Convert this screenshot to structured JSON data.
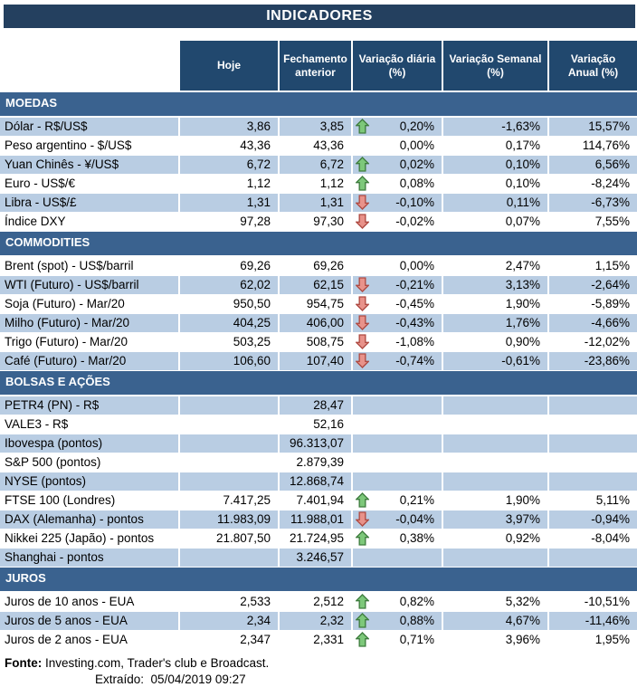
{
  "title": "INDICADORES",
  "columns": [
    {
      "key": "hoje",
      "label": "Hoje",
      "lines": [
        "Hoje"
      ]
    },
    {
      "key": "fechamento_anterior",
      "label": "Fechamento anterior",
      "lines": [
        "Fechamento",
        "anterior"
      ]
    },
    {
      "key": "variacao_diaria",
      "label": "Variação diária (%)",
      "lines": [
        "Variação diária",
        "(%)"
      ]
    },
    {
      "key": "variacao_semanal",
      "label": "Variação Semanal (%)",
      "lines": [
        "Variação Semanal",
        "(%)"
      ]
    },
    {
      "key": "variacao_anual",
      "label": "Variação Anual (%)",
      "lines": [
        "Variação",
        "Anual (%)"
      ]
    }
  ],
  "sections": [
    {
      "name": "MOEDAS",
      "rows": [
        {
          "label": "Dólar - R$/US$",
          "hoje": "3,86",
          "fechamento": "3,85",
          "arrow": "up",
          "diaria": "0,20%",
          "semanal": "-1,63%",
          "anual": "15,57%",
          "shaded": true
        },
        {
          "label": "Peso argentino - $/US$",
          "hoje": "43,36",
          "fechamento": "43,36",
          "arrow": "none",
          "diaria": "0,00%",
          "semanal": "0,17%",
          "anual": "114,76%",
          "shaded": false
        },
        {
          "label": "Yuan Chinês - ¥/US$",
          "hoje": "6,72",
          "fechamento": "6,72",
          "arrow": "up",
          "diaria": "0,02%",
          "semanal": "0,10%",
          "anual": "6,56%",
          "shaded": true
        },
        {
          "label": "Euro - US$/€",
          "hoje": "1,12",
          "fechamento": "1,12",
          "arrow": "up",
          "diaria": "0,08%",
          "semanal": "0,10%",
          "anual": "-8,24%",
          "shaded": false
        },
        {
          "label": "Libra - US$/£",
          "hoje": "1,31",
          "fechamento": "1,31",
          "arrow": "down",
          "diaria": "-0,10%",
          "semanal": "0,11%",
          "anual": "-6,73%",
          "shaded": true
        },
        {
          "label": "Índice DXY",
          "hoje": "97,28",
          "fechamento": "97,30",
          "arrow": "down",
          "diaria": "-0,02%",
          "semanal": "0,07%",
          "anual": "7,55%",
          "shaded": false
        }
      ]
    },
    {
      "name": "COMMODITIES",
      "rows": [
        {
          "label": "Brent (spot) - US$/barril",
          "hoje": "69,26",
          "fechamento": "69,26",
          "arrow": "none",
          "diaria": "0,00%",
          "semanal": "2,47%",
          "anual": "1,15%",
          "shaded": false
        },
        {
          "label": "WTI (Futuro) - US$/barril",
          "hoje": "62,02",
          "fechamento": "62,15",
          "arrow": "down",
          "diaria": "-0,21%",
          "semanal": "3,13%",
          "anual": "-2,64%",
          "shaded": true
        },
        {
          "label": "Soja (Futuro) - Mar/20",
          "hoje": "950,50",
          "fechamento": "954,75",
          "arrow": "down",
          "diaria": "-0,45%",
          "semanal": "1,90%",
          "anual": "-5,89%",
          "shaded": false
        },
        {
          "label": "Milho (Futuro) - Mar/20",
          "hoje": "404,25",
          "fechamento": "406,00",
          "arrow": "down",
          "diaria": "-0,43%",
          "semanal": "1,76%",
          "anual": "-4,66%",
          "shaded": true
        },
        {
          "label": "Trigo (Futuro) - Mar/20",
          "hoje": "503,25",
          "fechamento": "508,75",
          "arrow": "down",
          "diaria": "-1,08%",
          "semanal": "0,90%",
          "anual": "-12,02%",
          "shaded": false
        },
        {
          "label": "Café (Futuro) - Mar/20",
          "hoje": "106,60",
          "fechamento": "107,40",
          "arrow": "down",
          "diaria": "-0,74%",
          "semanal": "-0,61%",
          "anual": "-23,86%",
          "shaded": true
        }
      ]
    },
    {
      "name": "BOLSAS E AÇÕES",
      "rows": [
        {
          "label": "PETR4 (PN) - R$",
          "hoje": "",
          "fechamento": "28,47",
          "arrow": "none",
          "diaria": "",
          "semanal": "",
          "anual": "",
          "shaded": true
        },
        {
          "label": "VALE3 - R$",
          "hoje": "",
          "fechamento": "52,16",
          "arrow": "none",
          "diaria": "",
          "semanal": "",
          "anual": "",
          "shaded": false
        },
        {
          "label": "Ibovespa (pontos)",
          "hoje": "",
          "fechamento": "96.313,07",
          "arrow": "none",
          "diaria": "",
          "semanal": "",
          "anual": "",
          "shaded": true
        },
        {
          "label": "S&P 500 (pontos)",
          "hoje": "",
          "fechamento": "2.879,39",
          "arrow": "none",
          "diaria": "",
          "semanal": "",
          "anual": "",
          "shaded": false
        },
        {
          "label": "NYSE (pontos)",
          "hoje": "",
          "fechamento": "12.868,74",
          "arrow": "none",
          "diaria": "",
          "semanal": "",
          "anual": "",
          "shaded": true
        },
        {
          "label": "FTSE 100 (Londres)",
          "hoje": "7.417,25",
          "fechamento": "7.401,94",
          "arrow": "up",
          "diaria": "0,21%",
          "semanal": "1,90%",
          "anual": "5,11%",
          "shaded": false
        },
        {
          "label": "DAX (Alemanha) - pontos",
          "hoje": "11.983,09",
          "fechamento": "11.988,01",
          "arrow": "down",
          "diaria": "-0,04%",
          "semanal": "3,97%",
          "anual": "-0,94%",
          "shaded": true
        },
        {
          "label": "Nikkei 225 (Japão) - pontos",
          "hoje": "21.807,50",
          "fechamento": "21.724,95",
          "arrow": "up",
          "diaria": "0,38%",
          "semanal": "0,92%",
          "anual": "-8,04%",
          "shaded": false
        },
        {
          "label": "Shanghai - pontos",
          "hoje": "",
          "fechamento": "3.246,57",
          "arrow": "none",
          "diaria": "",
          "semanal": "",
          "anual": "",
          "shaded": true
        }
      ]
    },
    {
      "name": "JUROS",
      "rows": [
        {
          "label": "Juros de 10 anos - EUA",
          "hoje": "2,533",
          "fechamento": "2,512",
          "arrow": "up",
          "diaria": "0,82%",
          "semanal": "5,32%",
          "anual": "-10,51%",
          "shaded": false
        },
        {
          "label": "Juros de 5 anos - EUA",
          "hoje": "2,34",
          "fechamento": "2,32",
          "arrow": "up",
          "diaria": "0,88%",
          "semanal": "4,67%",
          "anual": "-11,46%",
          "shaded": true
        },
        {
          "label": "Juros de 2 anos - EUA",
          "hoje": "2,347",
          "fechamento": "2,331",
          "arrow": "up",
          "diaria": "0,71%",
          "semanal": "3,96%",
          "anual": "1,95%",
          "shaded": false
        }
      ]
    }
  ],
  "footer": {
    "fonte_label": "Fonte:",
    "fonte_text": "Investing.com, Trader's club e Broadcast.",
    "extraido_label": "Extraído:",
    "extraido_value": "05/04/2019 09:27"
  },
  "icons": {
    "up": "up-arrow-icon",
    "down": "down-arrow-icon"
  },
  "colors": {
    "title_band": "#24405F",
    "header_cell": "#21486E",
    "section_band": "#3A628F",
    "row_shade": "#B9CDE3",
    "row_plain": "#FFFFFF",
    "up_arrow_fill": "#7DC87A",
    "up_arrow_stroke": "#3E7C3E",
    "down_arrow_fill": "#E8928A",
    "down_arrow_stroke": "#AE4A42",
    "text": "#000000"
  }
}
